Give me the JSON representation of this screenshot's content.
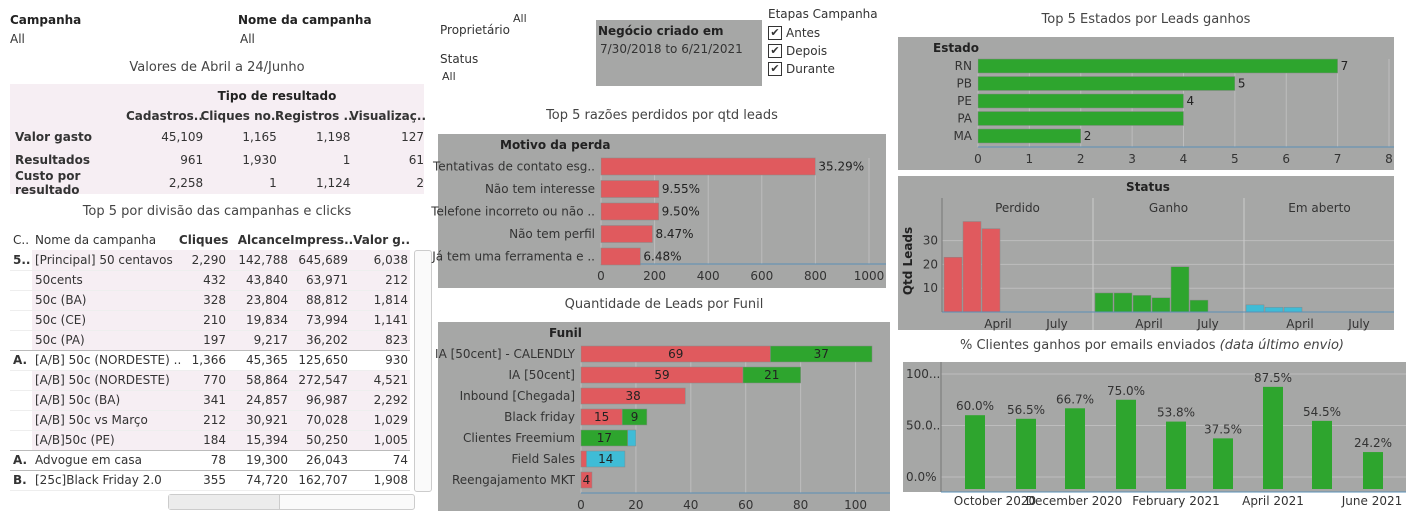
{
  "filters": {
    "campanha": {
      "label": "Campanha",
      "value": "All"
    },
    "nome_campanha": {
      "label": "Nome da campanha",
      "value": "All"
    },
    "proprietario": {
      "label": "Proprietário",
      "value": "All"
    },
    "status": {
      "label": "Status",
      "value": "All"
    },
    "negocio": {
      "label": "Negócio criado em",
      "value": "7/30/2018 to 6/21/2021"
    },
    "etapas": {
      "label": "Etapas Campanha",
      "options": [
        "Antes",
        "Depois",
        "Durante"
      ],
      "check": "✔"
    }
  },
  "valores": {
    "title": "Valores de Abril a 24/Junho",
    "header": "Tipo de resultado",
    "columns": [
      "Cadastros..",
      "Cliques no..",
      "Registros ..",
      "Visualizaç.."
    ],
    "rows": [
      {
        "label": "Valor gasto",
        "cells": [
          "45,109",
          "1,165",
          "1,198",
          "127"
        ]
      },
      {
        "label": "Resultados",
        "cells": [
          "961",
          "1,930",
          "1",
          "61"
        ]
      },
      {
        "label": "Custo por resultado",
        "cells": [
          "2,258",
          "1",
          "1,124",
          "2"
        ]
      }
    ]
  },
  "top5div": {
    "title": "Top 5 por divisão das campanhas e clicks",
    "columns": [
      "C..",
      "Nome da campanha",
      "Cliques",
      "Alcance",
      "Impress..",
      "Valor g.."
    ],
    "rows": [
      {
        "c": "5..",
        "name": "[Principal] 50 centavos",
        "cells": [
          "2,290",
          "142,788",
          "645,689",
          "6,038"
        ]
      },
      {
        "c": "",
        "name": "50cents",
        "cells": [
          "432",
          "43,840",
          "63,971",
          "212"
        ]
      },
      {
        "c": "",
        "name": "50c (BA)",
        "cells": [
          "328",
          "23,804",
          "88,812",
          "1,814"
        ]
      },
      {
        "c": "",
        "name": "50c (CE)",
        "cells": [
          "210",
          "19,834",
          "73,994",
          "1,141"
        ]
      },
      {
        "c": "",
        "name": "50c (PA)",
        "cells": [
          "197",
          "9,217",
          "36,202",
          "823"
        ]
      },
      {
        "c": "A.",
        "name": "[A/B] 50c (NORDESTE) ..",
        "cells": [
          "1,366",
          "45,365",
          "125,650",
          "930"
        ]
      },
      {
        "c": "",
        "name": "[A/B] 50c (NORDESTE)",
        "cells": [
          "770",
          "58,864",
          "272,547",
          "4,521"
        ]
      },
      {
        "c": "",
        "name": "[A/B] 50c (BA)",
        "cells": [
          "341",
          "24,857",
          "96,987",
          "2,292"
        ]
      },
      {
        "c": "",
        "name": "[A/B] 50c vs Março",
        "cells": [
          "212",
          "30,921",
          "70,028",
          "1,029"
        ]
      },
      {
        "c": "",
        "name": "[A/B]50c (PE)",
        "cells": [
          "184",
          "15,394",
          "50,250",
          "1,005"
        ]
      },
      {
        "c": "A.",
        "name": "Advogue em casa",
        "cells": [
          "78",
          "19,300",
          "26,043",
          "74"
        ]
      },
      {
        "c": "B.",
        "name": "[25c]Black Friday 2.0",
        "cells": [
          "355",
          "74,720",
          "162,707",
          "1,908"
        ]
      }
    ]
  },
  "colors": {
    "red": "#e05a5e",
    "green": "#2ea52e",
    "cyan": "#3fbcd6",
    "panel": "#a6a7a6",
    "axis": "#5a8fb5"
  },
  "chart_data": [
    {
      "type": "bar",
      "orientation": "horizontal",
      "title": "Top 5 razões perdidos por qtd leads",
      "ylabel": "Motivo da perda",
      "categories": [
        "Tentativas de contato esg..",
        "Não tem interesse",
        "Telefone incorreto ou não ..",
        "Não tem perfil",
        "Já tem uma ferramenta e .."
      ],
      "values": [
        800,
        216,
        215,
        192,
        147
      ],
      "data_labels": [
        "35.29%",
        "9.55%",
        "9.50%",
        "8.47%",
        "6.48%"
      ],
      "xlim": [
        0,
        1000
      ],
      "xticks": [
        0,
        200,
        400,
        600,
        800,
        1000
      ]
    },
    {
      "type": "bar",
      "orientation": "horizontal",
      "stacked": true,
      "title": "Quantidade de Leads por Funil",
      "ylabel": "Funil",
      "categories": [
        "IA [50cent] - CALENDLY",
        "IA [50cent]",
        "Inbound [Chegada]",
        "Black friday",
        "Clientes Freemium",
        "Field Sales",
        "Reengajamento MKT"
      ],
      "series": [
        {
          "color": "red",
          "values": [
            69,
            59,
            38,
            15,
            0,
            2,
            4
          ],
          "labels": [
            "69",
            "59",
            "38",
            "15",
            "",
            "",
            "4"
          ]
        },
        {
          "color": "green",
          "values": [
            37,
            21,
            0,
            9,
            17,
            0,
            0
          ],
          "labels": [
            "37",
            "21",
            "",
            "9",
            "17",
            "",
            ""
          ]
        },
        {
          "color": "cyan",
          "values": [
            0,
            0,
            0,
            0,
            3,
            14,
            0
          ],
          "labels": [
            "",
            "",
            "",
            "",
            "",
            "14",
            ""
          ]
        }
      ],
      "xlim": [
        0,
        110
      ],
      "xticks": [
        0,
        20,
        40,
        60,
        80,
        100
      ]
    },
    {
      "type": "bar",
      "orientation": "horizontal",
      "title": "Top 5 Estados por Leads ganhos",
      "ylabel": "Estado",
      "categories": [
        "RN",
        "PB",
        "PE",
        "PA",
        "MA"
      ],
      "values": [
        7,
        5,
        4,
        4,
        2
      ],
      "data_labels": [
        "7",
        "5",
        "4",
        "",
        "2"
      ],
      "xlim": [
        0,
        8
      ],
      "xticks": [
        0,
        1,
        2,
        3,
        4,
        5,
        6,
        7,
        8
      ]
    },
    {
      "type": "bar",
      "title": "Status",
      "ylabel": "Qtd Leads",
      "panels": [
        {
          "name": "Perdido",
          "color": "red",
          "values": [
            23,
            38,
            35,
            0,
            0,
            0,
            0,
            0,
            0
          ]
        },
        {
          "name": "Ganho",
          "color": "green",
          "values": [
            8,
            8,
            7,
            6,
            19,
            5,
            0,
            0,
            0
          ]
        },
        {
          "name": "Em aberto",
          "color": "cyan",
          "values": [
            3,
            2,
            2,
            0,
            0,
            0,
            0,
            0,
            0
          ]
        }
      ],
      "xticks": [
        "April",
        "July"
      ],
      "ylim": [
        0,
        42
      ],
      "yticks": [
        10,
        20,
        30
      ]
    },
    {
      "type": "bar",
      "title": "% Clientes ganhos por emails enviados",
      "subtitle": "(data último envio)",
      "values": [
        60.0,
        56.5,
        66.7,
        75.0,
        53.8,
        37.5,
        87.5,
        54.5,
        24.2
      ],
      "data_labels": [
        "60.0%",
        "56.5%",
        "66.7%",
        "75.0%",
        "53.8%",
        "37.5%",
        "87.5%",
        "54.5%",
        "24.2%"
      ],
      "ytick_labels": [
        "100...",
        "50.0..",
        "0.0%"
      ],
      "xtick_labels": [
        "October 2020",
        "December 2020",
        "February 2021",
        "April 2021",
        "June 2021"
      ],
      "ylim": [
        0,
        110
      ]
    }
  ]
}
